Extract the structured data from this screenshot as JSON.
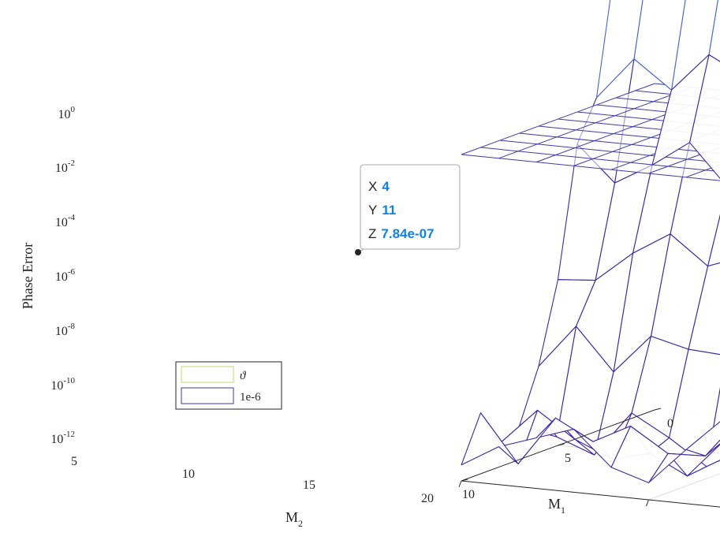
{
  "chart_data": {
    "type": "surface",
    "xlabel": "M",
    "xlabel_sub": "1",
    "ylabel": "M",
    "ylabel_sub": "2",
    "zlabel": "Phase Error",
    "x_ticks": [
      "0",
      "5",
      "10"
    ],
    "y_ticks": [
      "5",
      "10",
      "15",
      "20"
    ],
    "z_ticks": [
      {
        "base": "10",
        "exp": "0"
      },
      {
        "base": "10",
        "exp": "-2"
      },
      {
        "base": "10",
        "exp": "-4"
      },
      {
        "base": "10",
        "exp": "-6"
      },
      {
        "base": "10",
        "exp": "-8"
      },
      {
        "base": "10",
        "exp": "-10"
      },
      {
        "base": "10",
        "exp": "-12"
      }
    ],
    "xlim": [
      0,
      10
    ],
    "ylim": [
      5,
      20
    ],
    "zlim_log10": [
      -12,
      0
    ],
    "z_scale": "log",
    "grid": "on (major and minor)",
    "colormap": "parula",
    "legend_position": "lower-left",
    "series": [
      {
        "name": "ϑ",
        "legend_color": "#c9d66a",
        "kind": "error surface"
      },
      {
        "name": "1e-6",
        "legend_color": "#3e3ab0",
        "kind": "constant plane",
        "z": 1e-06
      }
    ],
    "datatip": {
      "x_label": "X",
      "x": "4",
      "y_label": "Y",
      "y": "11",
      "z_label": "Z",
      "z": "7.84e-07"
    }
  }
}
